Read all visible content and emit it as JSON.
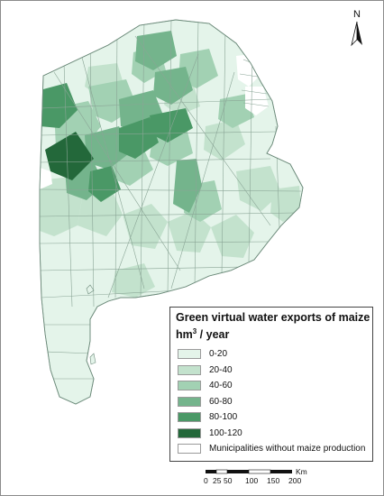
{
  "legend": {
    "title": "Green virtual water exports of maize",
    "unit_base": "hm",
    "unit_exp": "3",
    "unit_tail": " / year",
    "items": [
      {
        "label": "0-20",
        "color": "#e4f4ea"
      },
      {
        "label": "20-40",
        "color": "#c3e2cd"
      },
      {
        "label": "40-60",
        "color": "#a2d1b3"
      },
      {
        "label": "60-80",
        "color": "#74b48c"
      },
      {
        "label": "80-100",
        "color": "#4a9866"
      },
      {
        "label": "100-120",
        "color": "#23683a"
      },
      {
        "label": "Municipalities without maize production",
        "color": "#ffffff"
      }
    ]
  },
  "north_arrow": {
    "label": "N"
  },
  "scale_bar": {
    "unit": "Km",
    "ticks": [
      "0",
      "25",
      "50",
      "100",
      "150",
      "200"
    ]
  },
  "map": {
    "region_classes": [
      "0-20",
      "20-40",
      "40-60",
      "60-80",
      "80-100",
      "100-120"
    ]
  }
}
